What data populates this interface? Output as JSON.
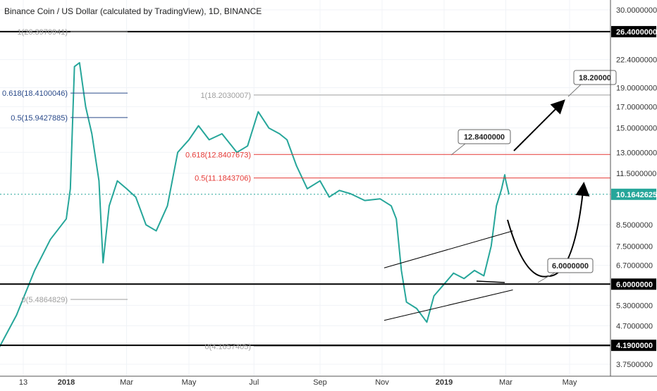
{
  "header": {
    "title": "Binance Coin / US Dollar (calculated by TradingView), 1D, BINANCE"
  },
  "colors": {
    "up": "#26a69a",
    "down": "#ef5350",
    "fib_red": "#e53935",
    "fib_gray": "#9e9e9e",
    "fib_blue": "#2a4a8a",
    "last_price": "#26a69a"
  },
  "chart_data": {
    "type": "line",
    "title": "Binance Coin / US Dollar (calculated by TradingView), 1D, BINANCE",
    "y_scale": "log",
    "ylim": [
      3.5,
      32
    ],
    "y_ticks": [
      "30.0000000",
      "22.4000000",
      "19.0000000",
      "17.0000000",
      "15.0000000",
      "13.0000000",
      "11.5000000",
      "8.5000000",
      "7.5000000",
      "6.7000000",
      "5.3000000",
      "4.7000000",
      "3.7500000"
    ],
    "y_tick_values": [
      30,
      22.4,
      19,
      17,
      15,
      13,
      11.5,
      8.5,
      7.5,
      6.7,
      5.3,
      4.7,
      3.75
    ],
    "x_ticks": [
      "13",
      "2018",
      "Mar",
      "May",
      "Jul",
      "Sep",
      "Nov",
      "2019",
      "Mar",
      "May"
    ],
    "x_tick_dates": [
      "2017-12-13",
      "2018-01-01",
      "2018-03-01",
      "2018-05-01",
      "2018-07-01",
      "2018-09-01",
      "2018-11-01",
      "2019-01-01",
      "2019-03-01",
      "2019-05-01"
    ],
    "price_series": {
      "name": "",
      "points": [
        [
          "2017-12-01",
          4.0
        ],
        [
          "2017-12-10",
          5.0
        ],
        [
          "2017-12-18",
          6.5
        ],
        [
          "2017-12-25",
          7.8
        ],
        [
          "2018-01-01",
          8.8
        ],
        [
          "2018-01-05",
          10.5
        ],
        [
          "2018-01-09",
          21.5
        ],
        [
          "2018-01-14",
          22.0
        ],
        [
          "2018-01-20",
          17.0
        ],
        [
          "2018-01-26",
          14.5
        ],
        [
          "2018-02-02",
          11.0
        ],
        [
          "2018-02-06",
          6.8
        ],
        [
          "2018-02-12",
          9.5
        ],
        [
          "2018-02-20",
          11.0
        ],
        [
          "2018-03-01",
          10.5
        ],
        [
          "2018-03-10",
          10.0
        ],
        [
          "2018-03-20",
          8.5
        ],
        [
          "2018-03-30",
          8.2
        ],
        [
          "2018-04-10",
          9.5
        ],
        [
          "2018-04-20",
          13.0
        ],
        [
          "2018-05-01",
          14.0
        ],
        [
          "2018-05-10",
          15.2
        ],
        [
          "2018-05-20",
          14.0
        ],
        [
          "2018-06-01",
          14.5
        ],
        [
          "2018-06-15",
          13.0
        ],
        [
          "2018-06-25",
          13.5
        ],
        [
          "2018-07-05",
          16.5
        ],
        [
          "2018-07-15",
          15.0
        ],
        [
          "2018-07-25",
          14.5
        ],
        [
          "2018-08-01",
          14.0
        ],
        [
          "2018-08-10",
          12.0
        ],
        [
          "2018-08-20",
          10.5
        ],
        [
          "2018-09-01",
          11.0
        ],
        [
          "2018-09-10",
          10.0
        ],
        [
          "2018-09-20",
          10.4
        ],
        [
          "2018-10-01",
          10.2
        ],
        [
          "2018-10-15",
          9.8
        ],
        [
          "2018-10-30",
          9.9
        ],
        [
          "2018-11-10",
          9.5
        ],
        [
          "2018-11-15",
          8.8
        ],
        [
          "2018-11-20",
          6.5
        ],
        [
          "2018-11-25",
          5.4
        ],
        [
          "2018-12-05",
          5.2
        ],
        [
          "2018-12-15",
          4.8
        ],
        [
          "2018-12-22",
          5.6
        ],
        [
          "2019-01-01",
          6.0
        ],
        [
          "2019-01-10",
          6.4
        ],
        [
          "2019-01-20",
          6.2
        ],
        [
          "2019-01-30",
          6.5
        ],
        [
          "2019-02-08",
          6.3
        ],
        [
          "2019-02-15",
          7.5
        ],
        [
          "2019-02-20",
          9.5
        ],
        [
          "2019-02-25",
          10.5
        ],
        [
          "2019-02-28",
          11.4
        ],
        [
          "2019-03-01",
          11.0
        ],
        [
          "2019-03-04",
          10.16
        ]
      ]
    },
    "horizontal_levels": [
      {
        "label": "26.4000000",
        "value": 26.4
      },
      {
        "label": "6.0000000",
        "value": 6.0
      },
      {
        "label": "4.1900000",
        "value": 4.19
      }
    ],
    "fib_levels": [
      {
        "label": "1(26.3970941)",
        "value": 26.397
      },
      {
        "label": "0.618(18.4100046)",
        "value": 18.41
      },
      {
        "label": "0.5(15.9427885)",
        "value": 15.9428
      },
      {
        "label": "0(5.4864829)",
        "value": 5.4865
      },
      {
        "label": "1(18.2030007)",
        "value": 18.203
      },
      {
        "label": "0.618(12.8407673)",
        "value": 12.8408
      },
      {
        "label": "0.5(11.1843706)",
        "value": 11.1844
      },
      {
        "label": "0(4.1657405)",
        "value": 4.1657
      }
    ],
    "last_price": {
      "label": "10.1642625",
      "value": 10.1643
    },
    "callouts": [
      {
        "label": "12.8400000",
        "value": 12.84
      },
      {
        "label": "18.20000",
        "value": 18.2
      },
      {
        "label": "6.0000000",
        "value": 6.0
      }
    ],
    "channel": {
      "upper": [
        [
          "2018-11-10",
          6.6
        ],
        [
          "2019-03-01",
          8.2
        ]
      ],
      "lower": [
        [
          "2018-11-10",
          4.85
        ],
        [
          "2019-03-01",
          5.8
        ]
      ]
    }
  }
}
